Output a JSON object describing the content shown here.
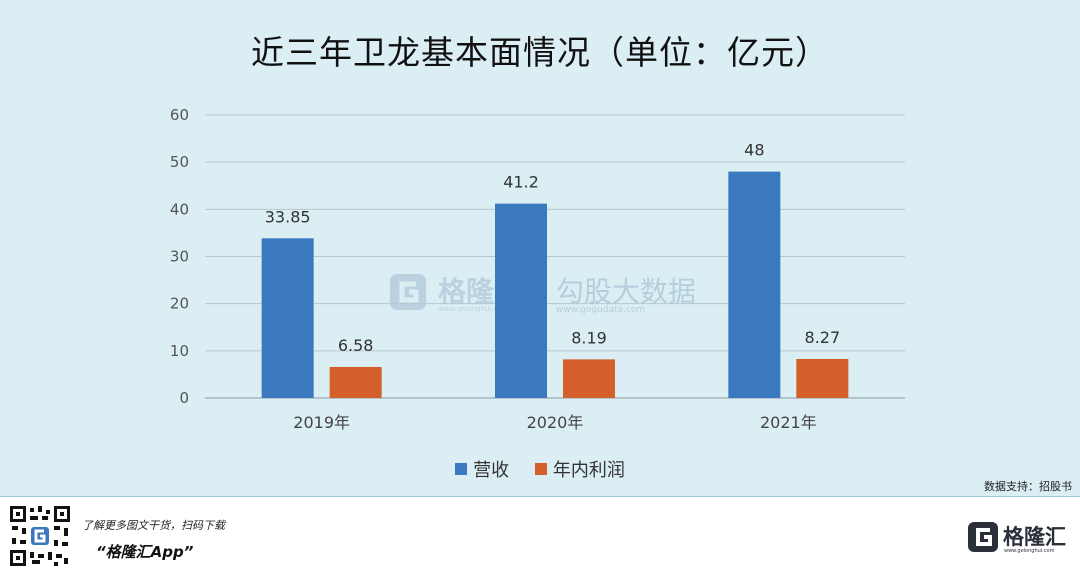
{
  "chart_data": {
    "type": "bar",
    "title": "近三年卫龙基本面情况（单位：亿元）",
    "categories": [
      "2019年",
      "2020年",
      "2021年"
    ],
    "series": [
      {
        "name": "营收",
        "values": [
          33.85,
          41.2,
          48
        ],
        "labels": [
          "33.85",
          "41.2",
          "48"
        ],
        "color": "#3a78bf"
      },
      {
        "name": "年内利润",
        "values": [
          6.58,
          8.19,
          8.27
        ],
        "labels": [
          "6.58",
          "8.19",
          "8.27"
        ],
        "color": "#d35f2a"
      }
    ],
    "ylim": [
      0,
      60
    ],
    "yticks": [
      0,
      10,
      20,
      30,
      40,
      50,
      60
    ],
    "grid": true,
    "legend_position": "bottom"
  },
  "source": "数据支持：招股书",
  "watermark": {
    "brand": "格隆汇",
    "url": "www.gelonghui.com",
    "brand2": "勾股大数据",
    "url2": "www.gogudata.com"
  },
  "footer": {
    "promo_text": "了解更多图文干货，扫码下载",
    "app_name": "“格隆汇App”",
    "logo_text": "格隆汇",
    "logo_url": "www.gelonghui.com",
    "qr_icon": "qr-code-icon"
  }
}
